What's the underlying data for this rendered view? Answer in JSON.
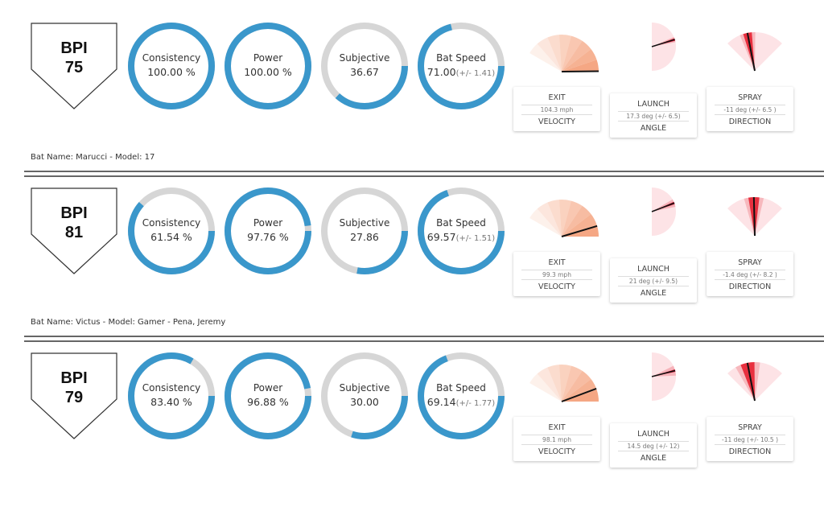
{
  "colors": {
    "gauge_fill": "#3a97cb",
    "gauge_track": "#d6d6d6",
    "exit": "#f4a07a",
    "launch": "#c9152f",
    "spray": "#e8303f"
  },
  "rows": [
    {
      "bpi_label": "BPI",
      "bpi": "75",
      "gauges": [
        {
          "label": "Consistency",
          "value": "100.00 %",
          "fraction": 1.0
        },
        {
          "label": "Power",
          "value": "100.00 %",
          "fraction": 1.0
        },
        {
          "label": "Subjective",
          "value": "36.67",
          "fraction": 0.3667
        },
        {
          "label": "Bat Speed",
          "value": "71.00",
          "extra": "(+/- 1.41)",
          "fraction": 0.71
        }
      ],
      "exit": {
        "top": "EXIT",
        "value": "104.3 mph",
        "bottom": "VELOCITY",
        "speed": 104.3
      },
      "launch": {
        "top": "LAUNCH",
        "value": "17.3 deg (+/- 6.5)",
        "bottom": "ANGLE",
        "angle": 17.3,
        "spread": 6.5
      },
      "spray": {
        "top": "SPRAY",
        "value": "-11 deg (+/- 6.5 )",
        "bottom": "DIRECTION",
        "angle": -11,
        "spread": 6.5
      },
      "bat_name": "Bat Name: Marucci - Model: 17"
    },
    {
      "bpi_label": "BPI",
      "bpi": "81",
      "gauges": [
        {
          "label": "Consistency",
          "value": "61.54 %",
          "fraction": 0.6154
        },
        {
          "label": "Power",
          "value": "97.76 %",
          "fraction": 0.9776
        },
        {
          "label": "Subjective",
          "value": "27.86",
          "fraction": 0.2786
        },
        {
          "label": "Bat Speed",
          "value": "69.57",
          "extra": "(+/- 1.51)",
          "fraction": 0.6957
        }
      ],
      "exit": {
        "top": "EXIT",
        "value": "99.3 mph",
        "bottom": "VELOCITY",
        "speed": 99.3
      },
      "launch": {
        "top": "LAUNCH",
        "value": "21 deg (+/- 9.5)",
        "bottom": "ANGLE",
        "angle": 21,
        "spread": 9.5
      },
      "spray": {
        "top": "SPRAY",
        "value": "-1.4 deg (+/- 8.2 )",
        "bottom": "DIRECTION",
        "angle": -1.4,
        "spread": 8.2
      },
      "bat_name": "Bat Name: Victus - Model: Gamer - Pena, Jeremy"
    },
    {
      "bpi_label": "BPI",
      "bpi": "79",
      "gauges": [
        {
          "label": "Consistency",
          "value": "83.40 %",
          "fraction": 0.834
        },
        {
          "label": "Power",
          "value": "96.88 %",
          "fraction": 0.9688
        },
        {
          "label": "Subjective",
          "value": "30.00",
          "fraction": 0.3
        },
        {
          "label": "Bat Speed",
          "value": "69.14",
          "extra": "(+/- 1.77)",
          "fraction": 0.6914
        }
      ],
      "exit": {
        "top": "EXIT",
        "value": "98.1 mph",
        "bottom": "VELOCITY",
        "speed": 98.1
      },
      "launch": {
        "top": "LAUNCH",
        "value": "14.5 deg (+/- 12)",
        "bottom": "ANGLE",
        "angle": 14.5,
        "spread": 12
      },
      "spray": {
        "top": "SPRAY",
        "value": "-11 deg (+/- 10.5 )",
        "bottom": "DIRECTION",
        "angle": -11,
        "spread": 10.5
      },
      "bat_name": ""
    }
  ]
}
